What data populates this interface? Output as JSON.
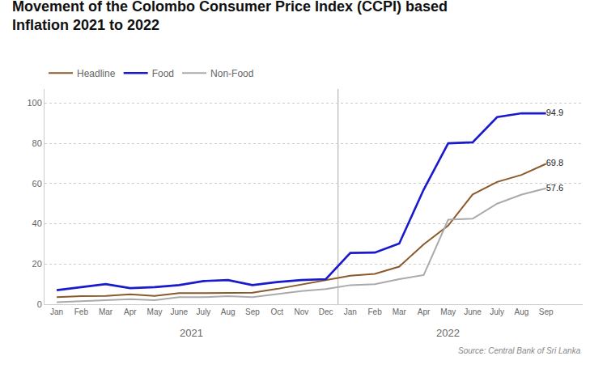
{
  "chart_data": {
    "type": "line",
    "title": "Movement of the Colombo Consumer Price Index (CCPI) based",
    "subtitle": "Inflation 2021 to 2022",
    "categories": [
      "Jan",
      "Feb",
      "Mar",
      "Apr",
      "May",
      "June",
      "July",
      "Aug",
      "Sep",
      "Oct",
      "Nov",
      "Dec",
      "Jan",
      "Feb",
      "Mar",
      "Apr",
      "May",
      "June",
      "July",
      "Aug",
      "Sep"
    ],
    "series": [
      {
        "name": "Headline",
        "color": "#8B5A2B",
        "values": [
          3.5,
          4.0,
          4.1,
          4.9,
          4.1,
          5.5,
          5.5,
          5.7,
          5.7,
          7.6,
          9.9,
          12.1,
          14.2,
          15.1,
          18.7,
          29.8,
          39.1,
          54.6,
          60.8,
          64.3,
          69.8
        ]
      },
      {
        "name": "Food",
        "color": "#1a1acd",
        "values": [
          7.0,
          8.5,
          10.0,
          8.0,
          8.5,
          9.5,
          11.5,
          12.0,
          9.5,
          11.0,
          12.0,
          12.5,
          25.5,
          25.7,
          30.2,
          57.0,
          80.0,
          80.5,
          93.0,
          94.9,
          94.9
        ]
      },
      {
        "name": "Non-Food",
        "color": "#aaaaaa",
        "values": [
          1.0,
          1.5,
          2.0,
          2.5,
          2.0,
          3.5,
          3.5,
          4.0,
          3.5,
          5.0,
          6.5,
          7.5,
          9.5,
          10.0,
          12.5,
          14.5,
          42.0,
          42.5,
          50.0,
          54.5,
          57.6
        ]
      }
    ],
    "annotations": [
      "2021",
      "2022",
      "Source: Central Bank of Sri Lanka"
    ],
    "ylim": [
      0,
      107
    ],
    "yticks": [
      0,
      20,
      40,
      60,
      80,
      100
    ],
    "grid": true,
    "legend": "upper left",
    "data_labels": true
  }
}
